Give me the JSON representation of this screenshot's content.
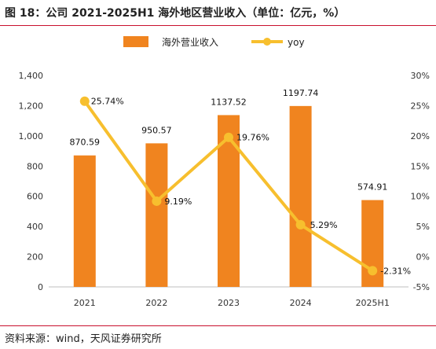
{
  "figure": {
    "title": "图 18：公司 2021-2025H1 海外地区营业收入（单位：亿元，%）",
    "source": "资料来源：wind，天风证券研究所",
    "rule_color": "#c8102e"
  },
  "chart_data": {
    "type": "bar",
    "categories": [
      "2021",
      "2022",
      "2023",
      "2024",
      "2025H1"
    ],
    "series": [
      {
        "name": "海外营业收入",
        "type": "bar",
        "axis": "left",
        "values": [
          870.59,
          950.57,
          1137.52,
          1197.74,
          574.91
        ],
        "labels": [
          "870.59",
          "950.57",
          "1137.52",
          "1197.74",
          "574.91"
        ],
        "color": "#f0841f"
      },
      {
        "name": "yoy",
        "type": "line",
        "axis": "right",
        "values": [
          25.74,
          9.19,
          19.76,
          5.29,
          -2.31
        ],
        "labels": [
          "25.74%",
          "9.19%",
          "19.76%",
          "5.29%",
          "-2.31%"
        ],
        "color": "#f7bf2e"
      }
    ],
    "y_left": {
      "min": 0,
      "max": 1400,
      "ticks": [
        0,
        200,
        400,
        600,
        800,
        1000,
        1200,
        1400
      ],
      "tick_labels": [
        "0",
        "200",
        "400",
        "600",
        "800",
        "1,000",
        "1,200",
        "1,400"
      ]
    },
    "y_right": {
      "min": -5,
      "max": 30,
      "ticks": [
        -5,
        0,
        5,
        10,
        15,
        20,
        25,
        30
      ],
      "tick_labels": [
        "-5%",
        "0%",
        "5%",
        "10%",
        "15%",
        "20%",
        "25%",
        "30%"
      ]
    },
    "grid": false,
    "legend_position": "top-center"
  }
}
